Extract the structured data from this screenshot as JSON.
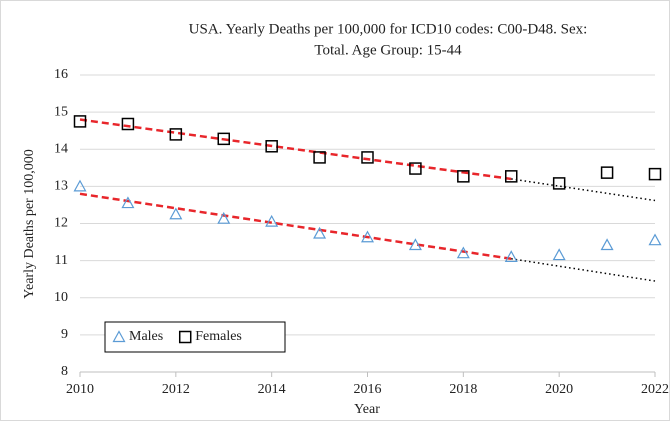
{
  "chart_data": {
    "type": "scatter",
    "title": [
      "USA. Yearly Deaths per 100,000 for ICD10 codes: C00-D48. Sex:",
      "Total. Age Group: 15-44"
    ],
    "x_label": "Year",
    "y_label": "Yearly Deaths per 100,000",
    "x": [
      2010,
      2011,
      2012,
      2013,
      2014,
      2015,
      2016,
      2017,
      2018,
      2019,
      2020,
      2021,
      2022
    ],
    "series": [
      {
        "name": "Males",
        "color": "#5b9bd5",
        "marker": "triangle",
        "values": [
          13.0,
          12.55,
          12.25,
          12.13,
          12.05,
          11.73,
          11.63,
          11.42,
          11.2,
          11.1,
          11.15,
          11.42,
          11.55
        ],
        "trend_x": [
          2010,
          2019,
          2022
        ],
        "trend_values": [
          12.8,
          11.05,
          10.45
        ]
      },
      {
        "name": "Females",
        "color": "#000000",
        "marker": "square",
        "values": [
          14.75,
          14.68,
          14.4,
          14.28,
          14.08,
          13.78,
          13.78,
          13.48,
          13.27,
          13.27,
          13.08,
          13.37,
          13.33
        ],
        "trend_x": [
          2010,
          2019,
          2022
        ],
        "trend_values": [
          14.8,
          13.2,
          12.62
        ]
      }
    ],
    "trend_fit_color": "#e8262b",
    "trend_extension_color": "#000000",
    "xlim": [
      2010,
      2022
    ],
    "xticks": [
      2010,
      2012,
      2014,
      2016,
      2018,
      2020,
      2022
    ],
    "ylim": [
      8,
      16
    ],
    "yticks": [
      8,
      9,
      10,
      11,
      12,
      13,
      14,
      15,
      16
    ],
    "grid": true,
    "legend_position": "lower left"
  }
}
